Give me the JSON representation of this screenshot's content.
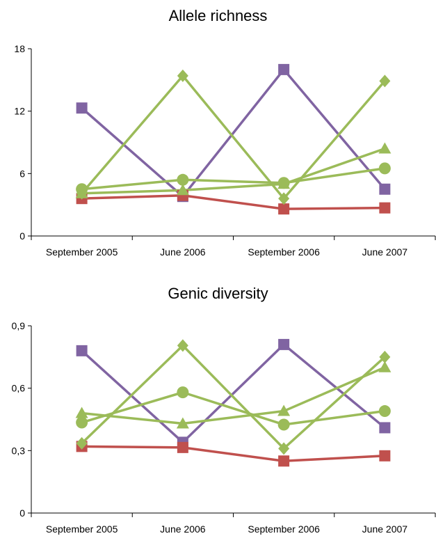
{
  "chart_data": [
    {
      "type": "line",
      "title": "Allele richness",
      "xlabel": "",
      "ylabel": "",
      "categories": [
        "September 2005",
        "June 2006",
        "September 2006",
        "June 2007"
      ],
      "ylim": [
        0,
        18
      ],
      "yticks": [
        "0",
        "6",
        "12",
        "18"
      ],
      "ytick_values": [
        0,
        6,
        12,
        18
      ],
      "grid": false,
      "series": [
        {
          "marker": "square",
          "color": "#8064a2",
          "values": [
            12.3,
            3.8,
            16.0,
            4.5
          ]
        },
        {
          "marker": "square",
          "color": "#c0504d",
          "values": [
            3.6,
            3.9,
            2.6,
            2.7
          ]
        },
        {
          "marker": "diamond",
          "color": "#9bbb59",
          "values": [
            4.1,
            15.4,
            3.6,
            14.9
          ]
        },
        {
          "marker": "triangle",
          "color": "#9bbb59",
          "values": [
            4.1,
            4.4,
            5.0,
            8.4
          ]
        },
        {
          "marker": "circle",
          "color": "#9bbb59",
          "values": [
            4.5,
            5.4,
            5.1,
            6.5
          ]
        }
      ]
    },
    {
      "type": "line",
      "title": "Genic diversity",
      "xlabel": "",
      "ylabel": "",
      "categories": [
        "September 2005",
        "June 2006",
        "September 2006",
        "June 2007"
      ],
      "ylim": [
        0,
        0.9
      ],
      "yticks": [
        "0",
        "0,3",
        "0,6",
        "0,9"
      ],
      "ytick_values": [
        0,
        0.3,
        0.6,
        0.9
      ],
      "grid": false,
      "series": [
        {
          "marker": "square",
          "color": "#8064a2",
          "values": [
            0.78,
            0.34,
            0.81,
            0.41
          ]
        },
        {
          "marker": "square",
          "color": "#c0504d",
          "values": [
            0.32,
            0.315,
            0.25,
            0.275
          ]
        },
        {
          "marker": "diamond",
          "color": "#9bbb59",
          "values": [
            0.335,
            0.805,
            0.31,
            0.75
          ]
        },
        {
          "marker": "triangle",
          "color": "#9bbb59",
          "values": [
            0.48,
            0.43,
            0.49,
            0.7
          ]
        },
        {
          "marker": "circle",
          "color": "#9bbb59",
          "values": [
            0.435,
            0.58,
            0.425,
            0.49
          ]
        }
      ]
    }
  ]
}
